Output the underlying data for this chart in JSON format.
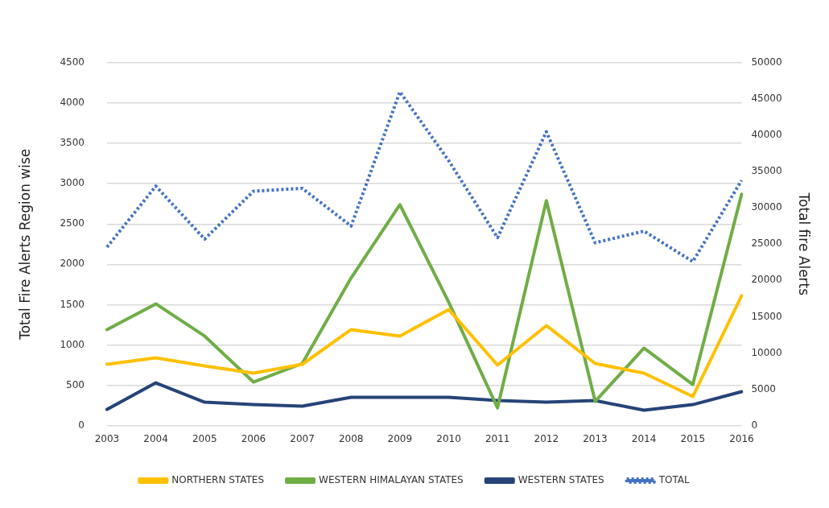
{
  "chart_data": {
    "type": "line",
    "categories": [
      "2003",
      "2004",
      "2005",
      "2006",
      "2007",
      "2008",
      "2009",
      "2010",
      "2011",
      "2012",
      "2013",
      "2014",
      "2015",
      "2016"
    ],
    "ylabel": "Total Fire Alerts Region wise",
    "y2label": "Total fire Alerts",
    "ylim": [
      0,
      4500
    ],
    "yticks": [
      0,
      500,
      1000,
      1500,
      2000,
      2500,
      3000,
      3500,
      4000,
      4500
    ],
    "y2lim": [
      0,
      50000
    ],
    "y2ticks": [
      0,
      5000,
      10000,
      15000,
      20000,
      25000,
      30000,
      35000,
      40000,
      45000,
      50000
    ],
    "grid": "y",
    "legend": "bottom",
    "marker": "none",
    "series": [
      {
        "name": "NORTHERN STATES",
        "color": "#ffc000",
        "values": [
          760,
          840,
          740,
          650,
          760,
          1190,
          1110,
          1440,
          750,
          1240,
          770,
          650,
          360,
          1610
        ]
      },
      {
        "name": "WESTERN HIMALAYAN STATES",
        "color": "#70ad47",
        "values": [
          1190,
          1510,
          1110,
          540,
          770,
          1830,
          2740,
          1530,
          220,
          2790,
          300,
          960,
          510,
          2870
        ]
      },
      {
        "name": "WESTERN STATES",
        "color": "#264478",
        "values": [
          200,
          530,
          290,
          260,
          240,
          350,
          350,
          350,
          310,
          290,
          310,
          190,
          260,
          420
        ]
      },
      {
        "name": "TOTAL",
        "color": "#4472c4",
        "axis": "y2",
        "line_style": "dotted",
        "values": [
          24600,
          33000,
          25700,
          32300,
          32700,
          27500,
          46000,
          36500,
          25900,
          40500,
          25200,
          26800,
          22600,
          33800
        ]
      }
    ]
  }
}
